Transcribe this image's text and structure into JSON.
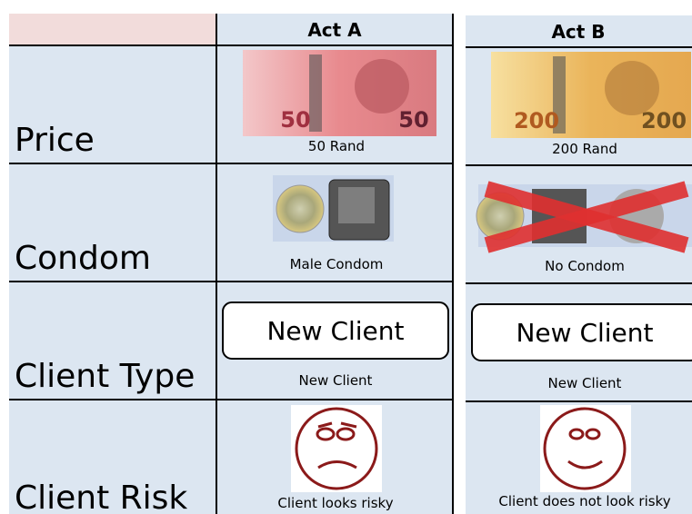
{
  "header": {
    "columns": [
      "Act A",
      "Act B"
    ]
  },
  "rows": [
    {
      "label": "Price",
      "cells": [
        {
          "note_numeral": "50",
          "caption": "50 Rand"
        },
        {
          "note_numeral": "200",
          "caption": "200 Rand"
        }
      ]
    },
    {
      "label": "Condom",
      "cells": [
        {
          "caption": "Male Condom"
        },
        {
          "caption": "No Condom"
        }
      ]
    },
    {
      "label": "Client Type",
      "cells": [
        {
          "box_text": "New Client",
          "caption": "New Client"
        },
        {
          "box_text": "New Client",
          "caption": "New Client"
        }
      ]
    },
    {
      "label": "Client Risk",
      "cells": [
        {
          "caption": "Client looks risky"
        },
        {
          "caption": "Client does not look risky"
        }
      ]
    }
  ]
}
